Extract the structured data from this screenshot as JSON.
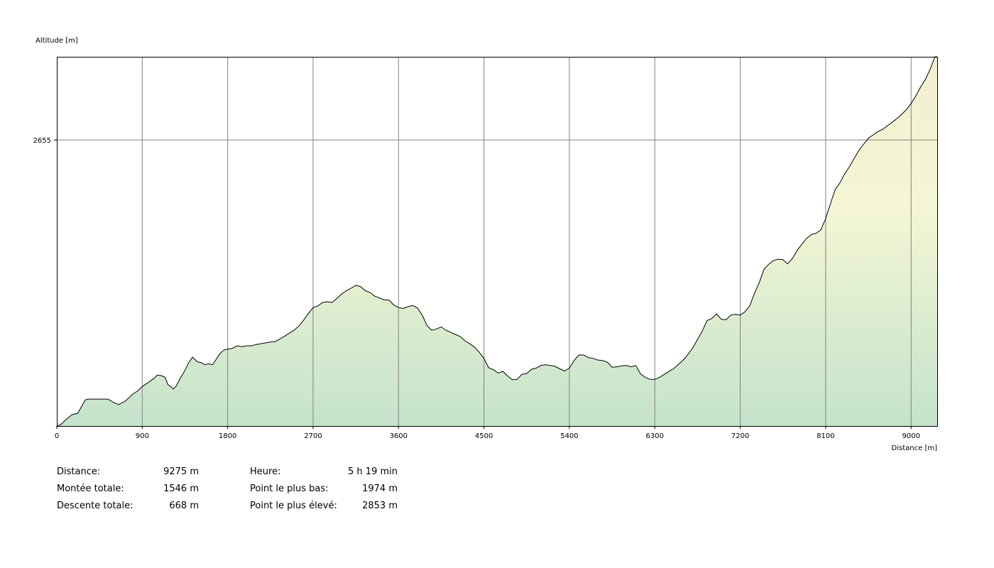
{
  "chart_data": {
    "type": "area",
    "ylabel": "Altitude [m]",
    "xlabel": "Distance [m]",
    "xlim": [
      0,
      9275
    ],
    "ylim": [
      1974,
      2853
    ],
    "x_ticks": [
      0,
      900,
      1800,
      2700,
      3600,
      4500,
      5400,
      6300,
      7200,
      8100,
      9000
    ],
    "y_ticks": [
      2655
    ],
    "grid": true,
    "colors": {
      "fill_top": "#f6f6d2",
      "fill_bottom": "#c4e3cb",
      "line": "#000000",
      "grid": "#808080"
    },
    "points": [
      [
        0,
        1974
      ],
      [
        40,
        1977
      ],
      [
        100,
        1990
      ],
      [
        160,
        2001
      ],
      [
        220,
        2004
      ],
      [
        300,
        2036
      ],
      [
        330,
        2038
      ],
      [
        450,
        2038
      ],
      [
        540,
        2038
      ],
      [
        600,
        2030
      ],
      [
        650,
        2025
      ],
      [
        720,
        2033
      ],
      [
        800,
        2050
      ],
      [
        850,
        2057
      ],
      [
        900,
        2068
      ],
      [
        960,
        2077
      ],
      [
        1020,
        2087
      ],
      [
        1060,
        2095
      ],
      [
        1100,
        2094
      ],
      [
        1140,
        2090
      ],
      [
        1170,
        2073
      ],
      [
        1200,
        2068
      ],
      [
        1230,
        2062
      ],
      [
        1260,
        2070
      ],
      [
        1300,
        2088
      ],
      [
        1340,
        2102
      ],
      [
        1390,
        2125
      ],
      [
        1430,
        2138
      ],
      [
        1480,
        2127
      ],
      [
        1520,
        2125
      ],
      [
        1560,
        2120
      ],
      [
        1600,
        2122
      ],
      [
        1640,
        2120
      ],
      [
        1680,
        2133
      ],
      [
        1720,
        2147
      ],
      [
        1760,
        2155
      ],
      [
        1800,
        2157
      ],
      [
        1850,
        2159
      ],
      [
        1900,
        2165
      ],
      [
        1950,
        2163
      ],
      [
        2000,
        2165
      ],
      [
        2050,
        2165
      ],
      [
        2100,
        2168
      ],
      [
        2150,
        2170
      ],
      [
        2200,
        2172
      ],
      [
        2250,
        2174
      ],
      [
        2300,
        2175
      ],
      [
        2350,
        2181
      ],
      [
        2400,
        2188
      ],
      [
        2450,
        2195
      ],
      [
        2500,
        2202
      ],
      [
        2550,
        2212
      ],
      [
        2600,
        2226
      ],
      [
        2650,
        2242
      ],
      [
        2700,
        2256
      ],
      [
        2750,
        2260
      ],
      [
        2800,
        2268
      ],
      [
        2850,
        2270
      ],
      [
        2900,
        2268
      ],
      [
        2950,
        2278
      ],
      [
        3000,
        2288
      ],
      [
        3050,
        2296
      ],
      [
        3100,
        2302
      ],
      [
        3150,
        2309
      ],
      [
        3200,
        2306
      ],
      [
        3250,
        2296
      ],
      [
        3300,
        2292
      ],
      [
        3350,
        2283
      ],
      [
        3400,
        2279
      ],
      [
        3450,
        2274
      ],
      [
        3500,
        2274
      ],
      [
        3550,
        2262
      ],
      [
        3600,
        2256
      ],
      [
        3650,
        2254
      ],
      [
        3700,
        2258
      ],
      [
        3750,
        2261
      ],
      [
        3800,
        2255
      ],
      [
        3850,
        2238
      ],
      [
        3900,
        2213
      ],
      [
        3950,
        2202
      ],
      [
        4000,
        2205
      ],
      [
        4050,
        2210
      ],
      [
        4100,
        2202
      ],
      [
        4150,
        2197
      ],
      [
        4200,
        2192
      ],
      [
        4250,
        2187
      ],
      [
        4300,
        2177
      ],
      [
        4350,
        2170
      ],
      [
        4400,
        2162
      ],
      [
        4450,
        2150
      ],
      [
        4500,
        2135
      ],
      [
        4550,
        2113
      ],
      [
        4600,
        2108
      ],
      [
        4650,
        2100
      ],
      [
        4700,
        2104
      ],
      [
        4750,
        2093
      ],
      [
        4800,
        2084
      ],
      [
        4850,
        2085
      ],
      [
        4900,
        2097
      ],
      [
        4950,
        2099
      ],
      [
        5000,
        2109
      ],
      [
        5050,
        2112
      ],
      [
        5100,
        2118
      ],
      [
        5150,
        2120
      ],
      [
        5200,
        2118
      ],
      [
        5250,
        2116
      ],
      [
        5300,
        2110
      ],
      [
        5350,
        2105
      ],
      [
        5400,
        2112
      ],
      [
        5450,
        2130
      ],
      [
        5500,
        2143
      ],
      [
        5550,
        2143
      ],
      [
        5600,
        2137
      ],
      [
        5650,
        2135
      ],
      [
        5700,
        2131
      ],
      [
        5750,
        2130
      ],
      [
        5800,
        2126
      ],
      [
        5850,
        2114
      ],
      [
        5900,
        2115
      ],
      [
        5950,
        2117
      ],
      [
        6000,
        2118
      ],
      [
        6050,
        2115
      ],
      [
        6100,
        2118
      ],
      [
        6150,
        2098
      ],
      [
        6200,
        2090
      ],
      [
        6250,
        2085
      ],
      [
        6300,
        2085
      ],
      [
        6350,
        2090
      ],
      [
        6400,
        2097
      ],
      [
        6450,
        2104
      ],
      [
        6500,
        2111
      ],
      [
        6550,
        2121
      ],
      [
        6600,
        2131
      ],
      [
        6650,
        2145
      ],
      [
        6700,
        2160
      ],
      [
        6750,
        2180
      ],
      [
        6800,
        2200
      ],
      [
        6850,
        2225
      ],
      [
        6900,
        2230
      ],
      [
        6950,
        2241
      ],
      [
        7000,
        2228
      ],
      [
        7050,
        2227
      ],
      [
        7100,
        2238
      ],
      [
        7150,
        2240
      ],
      [
        7200,
        2238
      ],
      [
        7250,
        2246
      ],
      [
        7300,
        2260
      ],
      [
        7350,
        2290
      ],
      [
        7400,
        2315
      ],
      [
        7450,
        2347
      ],
      [
        7500,
        2359
      ],
      [
        7550,
        2368
      ],
      [
        7600,
        2371
      ],
      [
        7650,
        2370
      ],
      [
        7700,
        2360
      ],
      [
        7750,
        2373
      ],
      [
        7800,
        2392
      ],
      [
        7850,
        2407
      ],
      [
        7900,
        2421
      ],
      [
        7950,
        2430
      ],
      [
        8000,
        2433
      ],
      [
        8050,
        2441
      ],
      [
        8100,
        2468
      ],
      [
        8150,
        2503
      ],
      [
        8200,
        2537
      ],
      [
        8250,
        2553
      ],
      [
        8300,
        2574
      ],
      [
        8350,
        2591
      ],
      [
        8400,
        2611
      ],
      [
        8450,
        2630
      ],
      [
        8500,
        2645
      ],
      [
        8550,
        2659
      ],
      [
        8600,
        2667
      ],
      [
        8650,
        2675
      ],
      [
        8700,
        2680
      ],
      [
        8750,
        2689
      ],
      [
        8800,
        2697
      ],
      [
        8850,
        2706
      ],
      [
        8900,
        2716
      ],
      [
        8950,
        2727
      ],
      [
        9000,
        2742
      ],
      [
        9050,
        2760
      ],
      [
        9100,
        2781
      ],
      [
        9150,
        2799
      ],
      [
        9200,
        2823
      ],
      [
        9250,
        2853
      ],
      [
        9275,
        2853
      ]
    ]
  },
  "stats": {
    "col1": [
      {
        "label": "Distance:",
        "value": "9275 m"
      },
      {
        "label": "Montée totale:",
        "value": "1546 m"
      },
      {
        "label": "Descente totale:",
        "value": "668 m"
      }
    ],
    "col2": [
      {
        "label": "Heure:",
        "value": "5 h 19 min"
      },
      {
        "label": "Point le plus bas:",
        "value": "1974 m"
      },
      {
        "label": "Point le plus élevé:",
        "value": "2853 m"
      }
    ]
  }
}
